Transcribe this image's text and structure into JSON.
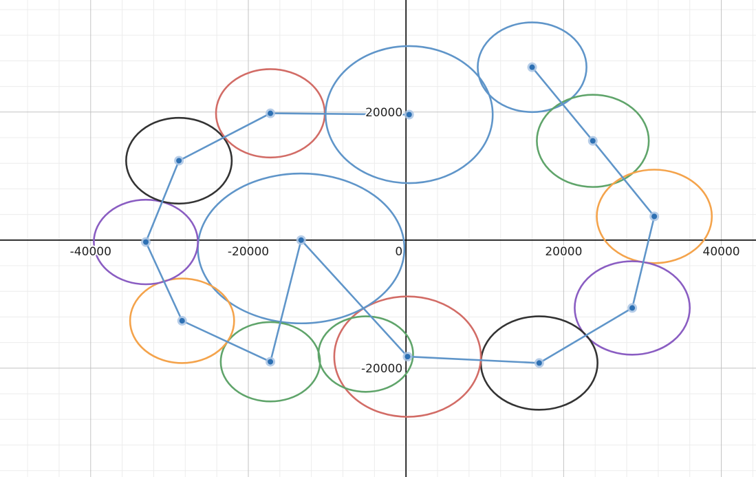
{
  "colors": {
    "background": "#ffffff",
    "minor_grid": "#ececec",
    "major_grid": "#c2c2c2",
    "axis": "#000000",
    "path": "#5f95c9",
    "point": "#2d70b3",
    "point_halo": "#a9c4e4",
    "blue": "#5f95c9",
    "red": "#d26c66",
    "green": "#5fa46a",
    "orange": "#f4a34b",
    "purple": "#8a5dc2",
    "black": "#333333"
  },
  "axes": {
    "x_ticks": [
      {
        "value": -40000,
        "label": "-40000"
      },
      {
        "value": -20000,
        "label": "-20000"
      },
      {
        "value": 0,
        "label": "0"
      },
      {
        "value": 20000,
        "label": "20000"
      },
      {
        "value": 40000,
        "label": "40000"
      }
    ],
    "y_ticks": [
      {
        "value": 20000,
        "label": "20000"
      },
      {
        "value": -20000,
        "label": "-20000"
      }
    ],
    "x_range": [
      -51500,
      44400
    ],
    "y_range": [
      -37000,
      37500
    ],
    "major_step": 20000,
    "minor_step": 4000
  },
  "path_points": [
    [
      16000,
      27000
    ],
    [
      23700,
      15500
    ],
    [
      31500,
      3700
    ],
    [
      28700,
      -10600
    ],
    [
      16900,
      -19200
    ],
    [
      200,
      -18200
    ],
    [
      -13300,
      0
    ],
    [
      -17200,
      -19000
    ],
    [
      -28400,
      -12600
    ],
    [
      -33000,
      -300
    ],
    [
      -28800,
      12400
    ],
    [
      -17200,
      19800
    ],
    [
      400,
      19600
    ]
  ],
  "circles": [
    {
      "name": "blue-circle-top-right",
      "color": "blue",
      "cx": 16000,
      "cy": 27000,
      "rx": 6900,
      "ry": 7000
    },
    {
      "name": "green-circle-upper-right",
      "color": "green",
      "cx": 23700,
      "cy": 15500,
      "rx": 7100,
      "ry": 7200
    },
    {
      "name": "orange-circle-right",
      "color": "orange",
      "cx": 31500,
      "cy": 3700,
      "rx": 7300,
      "ry": 7300
    },
    {
      "name": "purple-circle-lower-right",
      "color": "purple",
      "cx": 28700,
      "cy": -10600,
      "rx": 7300,
      "ry": 7300
    },
    {
      "name": "black-circle-bottom-right",
      "color": "black",
      "cx": 16900,
      "cy": -19200,
      "rx": 7400,
      "ry": 7300
    },
    {
      "name": "red-circle-bottom",
      "color": "red",
      "cx": 200,
      "cy": -18200,
      "rx": 9300,
      "ry": 9400
    },
    {
      "name": "green-circle-bottom-center",
      "color": "green",
      "cx": -5100,
      "cy": -17800,
      "rx": 6000,
      "ry": 5900
    },
    {
      "name": "blue-circle-center-large",
      "color": "blue",
      "cx": -13300,
      "cy": -1300,
      "rx": 13100,
      "ry": 11700
    },
    {
      "name": "green-circle-bottom-left",
      "color": "green",
      "cx": -17200,
      "cy": -19000,
      "rx": 6300,
      "ry": 6200
    },
    {
      "name": "orange-circle-lower-left",
      "color": "orange",
      "cx": -28400,
      "cy": -12600,
      "rx": 6600,
      "ry": 6600
    },
    {
      "name": "purple-circle-left",
      "color": "purple",
      "cx": -33000,
      "cy": -300,
      "rx": 6600,
      "ry": 6600
    },
    {
      "name": "black-circle-upper-left",
      "color": "black",
      "cx": -28800,
      "cy": 12400,
      "rx": 6700,
      "ry": 6700
    },
    {
      "name": "red-circle-top-left",
      "color": "red",
      "cx": -17200,
      "cy": 19800,
      "rx": 6900,
      "ry": 6900
    },
    {
      "name": "blue-circle-top-center",
      "color": "blue",
      "cx": 400,
      "cy": 19600,
      "rx": 10600,
      "ry": 10700
    }
  ]
}
